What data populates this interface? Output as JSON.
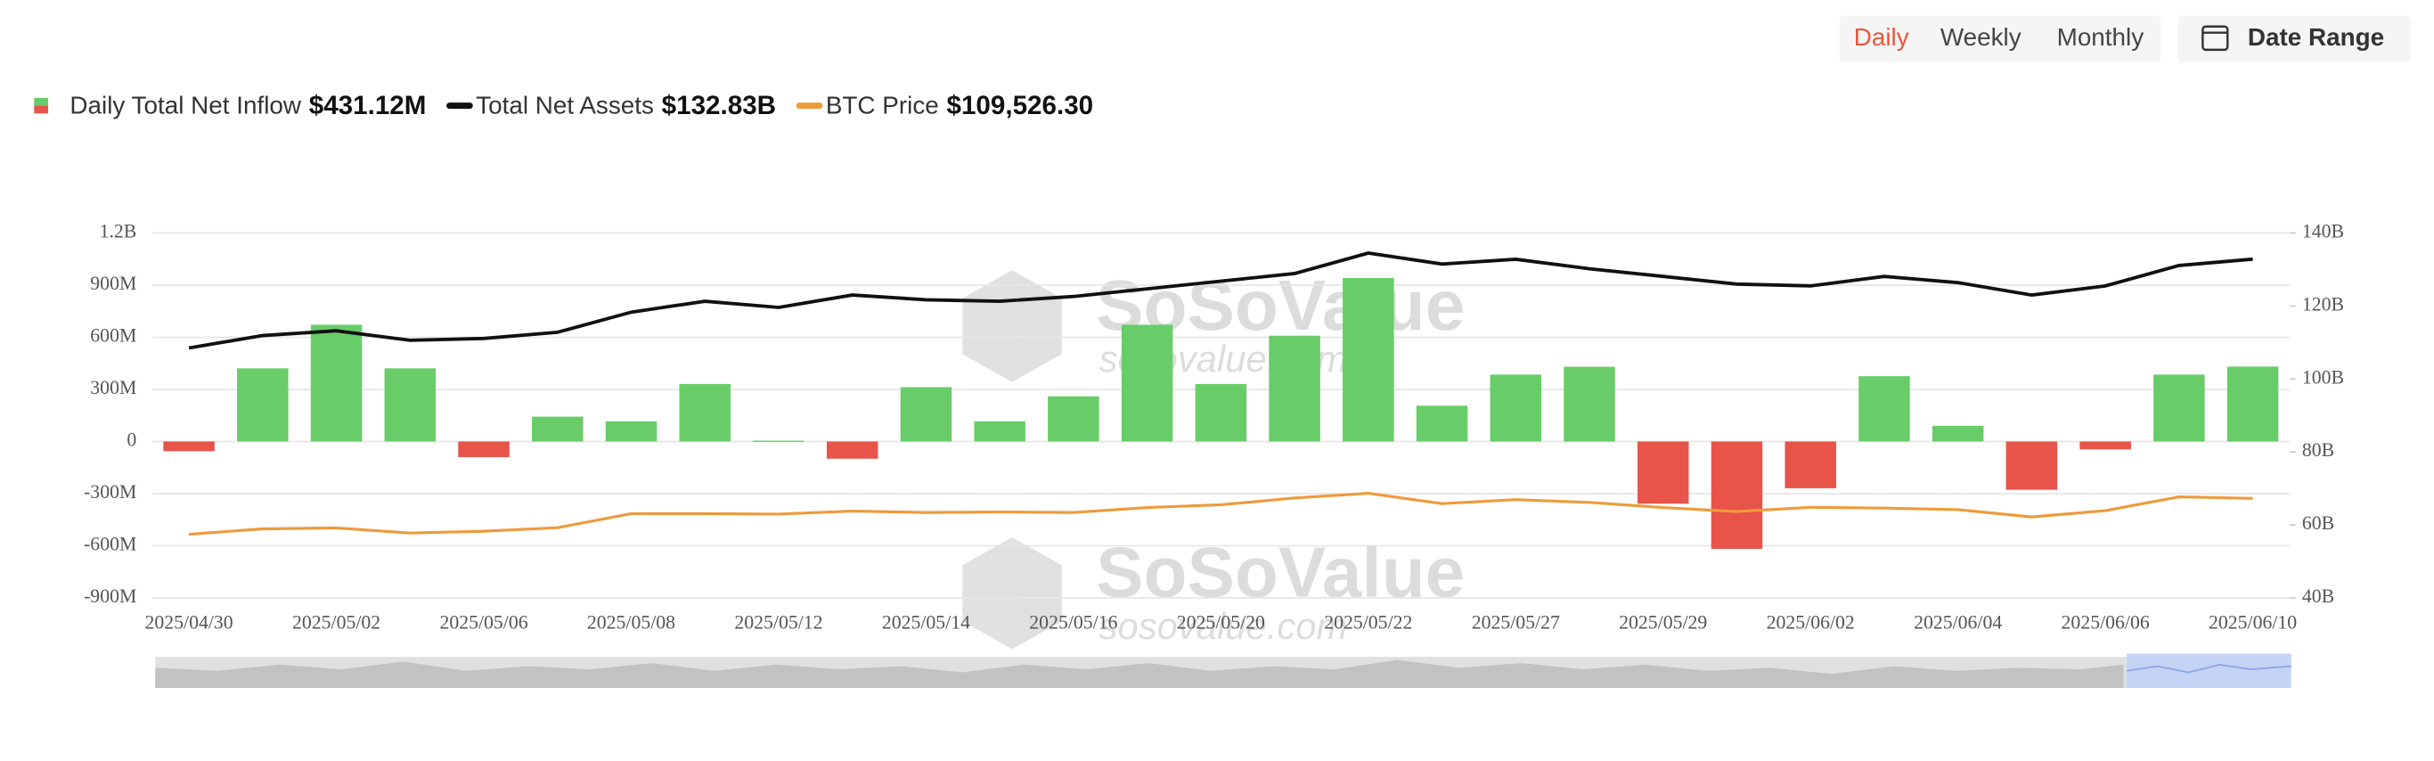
{
  "controls": {
    "periods": [
      "Daily",
      "Weekly",
      "Monthly"
    ],
    "active": 0,
    "date_range": "Date Range"
  },
  "watermark": {
    "brand": "SoSoValue",
    "url": "sosovalue.com"
  },
  "chart_data": {
    "type": "bar",
    "categories": [
      "2025/04/30",
      null,
      "2025/05/02",
      null,
      "2025/05/06",
      null,
      "2025/05/08",
      null,
      "2025/05/12",
      null,
      "2025/05/14",
      null,
      "2025/05/16",
      null,
      "2025/05/20",
      null,
      "2025/05/22",
      null,
      "2025/05/27",
      null,
      "2025/05/29",
      null,
      "2025/06/02",
      null,
      "2025/06/04",
      null,
      "2025/06/06",
      null,
      "2025/06/10"
    ],
    "ylim": [
      -900,
      1200
    ],
    "yticks": [
      {
        "value": -900,
        "label": "-900M"
      },
      {
        "value": -600,
        "label": "-600M"
      },
      {
        "value": -300,
        "label": "-300M"
      },
      0,
      {
        "value": 300,
        "label": "300M"
      },
      {
        "value": 600,
        "label": "600M"
      },
      {
        "value": 900,
        "label": "900M"
      },
      {
        "value": 1200,
        "label": "1.2B"
      }
    ],
    "y2lim": [
      40,
      140
    ],
    "y2ticks": [
      {
        "value": 40,
        "label": "40B"
      },
      {
        "value": 60,
        "label": "60B"
      },
      {
        "value": 80,
        "label": "80B"
      },
      {
        "value": 100,
        "label": "100B"
      },
      {
        "value": 120,
        "label": "120B"
      },
      {
        "value": 140,
        "label": "140B"
      }
    ],
    "y3lim": [
      67000,
      223000
    ],
    "grid": true,
    "series": [
      {
        "name": "Daily Total Net Inflow",
        "value_label": "$431.12M",
        "color": "#68cd68",
        "negative_color": "#e8534a",
        "values": [
          -56,
          421,
          672,
          421,
          -90,
          143,
          116,
          331,
          5,
          -99,
          313,
          116,
          260,
          672,
          331,
          609,
          941,
          206,
          385,
          430,
          -358,
          -618,
          -269,
          376,
          90,
          -278,
          -45,
          385,
          431.12
        ]
      },
      {
        "name": "Total Net Assets",
        "value_label": "$132.83B",
        "color": "#111111",
        "axis": "y2",
        "values": [
          108.5,
          111.9,
          113.2,
          110.6,
          111.1,
          112.8,
          118.3,
          121.3,
          119.6,
          123,
          121.7,
          121.3,
          122.6,
          124.7,
          126.8,
          128.9,
          134.5,
          131.5,
          132.8,
          130.2,
          128.1,
          126,
          125.5,
          128.1,
          126.4,
          123,
          125.5,
          131.1,
          132.83
        ]
      },
      {
        "name": "BTC Price",
        "value_label": "$109,526.30",
        "color": "#ee9a3a",
        "axis": "y3",
        "values": [
          94200,
          96500,
          96900,
          94700,
          95500,
          97000,
          103000,
          103000,
          102800,
          104100,
          103500,
          103700,
          103500,
          105600,
          106800,
          109700,
          111700,
          107300,
          109000,
          107800,
          105600,
          103900,
          105700,
          105400,
          104700,
          101600,
          104300,
          110200,
          109526.3
        ]
      }
    ]
  }
}
